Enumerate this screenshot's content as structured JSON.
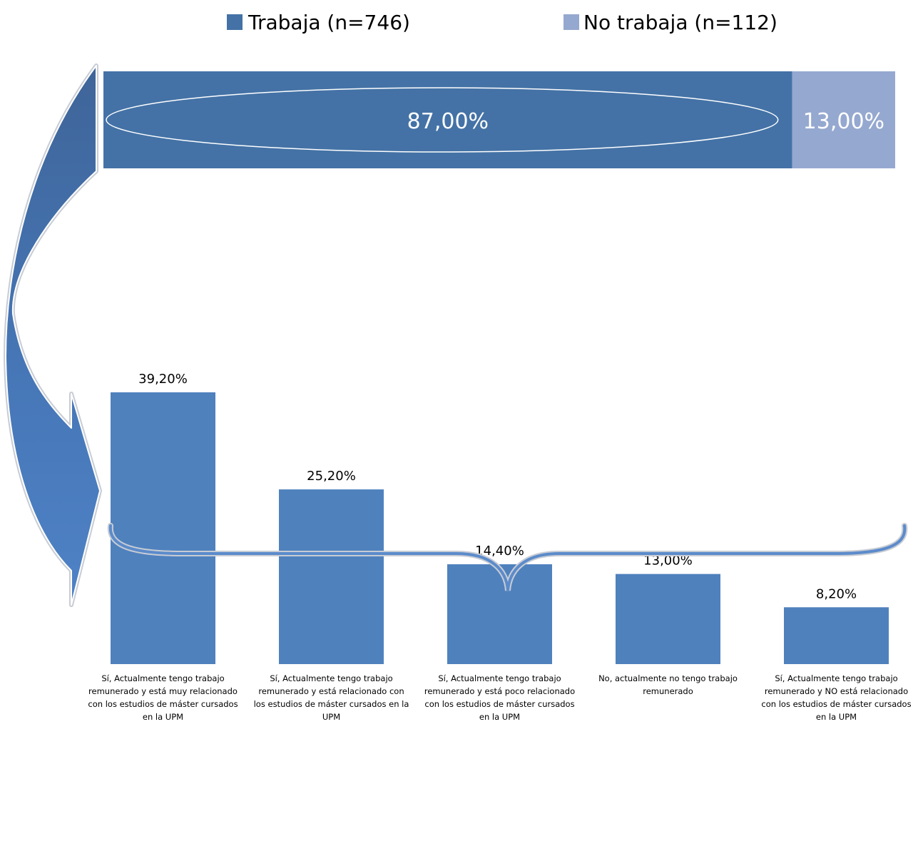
{
  "colors": {
    "dark_blue": "#4472A6",
    "light_blue": "#95A8CF",
    "bar_blue": "#4F81BD",
    "arrow_light": "#4A7CC0",
    "arrow_dark": "#3F6599",
    "brace": "#5B8BCB"
  },
  "legend": [
    {
      "label": "Trabaja (n=746)",
      "color": "#4472A6"
    },
    {
      "label": "No trabaja (n=112)",
      "color": "#95A8CF"
    }
  ],
  "chart_data": [
    {
      "type": "bar",
      "orientation": "horizontal-stacked",
      "series": [
        {
          "name": "Trabaja (n=746)",
          "values": [
            87.0
          ],
          "label": "87,00%"
        },
        {
          "name": "No trabaja (n=112)",
          "values": [
            13.0
          ],
          "label": "13,00%"
        }
      ],
      "xlim": [
        0,
        100
      ]
    },
    {
      "type": "bar",
      "categories": [
        "Sí, Actualmente tengo trabajo remunerado y está muy relacionado con los estudios de máster cursados en la UPM",
        "Sí, Actualmente tengo trabajo remunerado y está  relacionado con los estudios de máster cursados en la UPM",
        "Sí, Actualmente tengo trabajo remunerado y está  poco relacionado con los estudios de máster cursados en la UPM",
        "No, actualmente no tengo trabajo remunerado",
        "Sí, Actualmente tengo trabajo remunerado y NO está relacionado con los estudios de máster cursados en la UPM"
      ],
      "category_lines": [
        [
          "Sí, Actualmente tengo trabajo",
          "remunerado y está muy relacionado",
          "con los estudios de máster cursados",
          "en la UPM"
        ],
        [
          "Sí, Actualmente tengo trabajo",
          "remunerado y está  relacionado con",
          "los estudios de máster cursados en la",
          "UPM"
        ],
        [
          "Sí, Actualmente tengo trabajo",
          "remunerado y está  poco relacionado",
          "con los estudios de máster cursados",
          "en la UPM"
        ],
        [
          "No, actualmente no tengo trabajo",
          "remunerado"
        ],
        [
          "Sí, Actualmente tengo trabajo",
          "remunerado y NO está relacionado",
          "con los estudios de máster cursados",
          "en la UPM"
        ]
      ],
      "values": [
        39.2,
        25.2,
        14.4,
        13.0,
        8.2
      ],
      "data_labels": [
        "39,20%",
        "25,20%",
        "14,40%",
        "13,00%",
        "8,20%"
      ],
      "ylim": [
        0,
        40
      ]
    }
  ]
}
